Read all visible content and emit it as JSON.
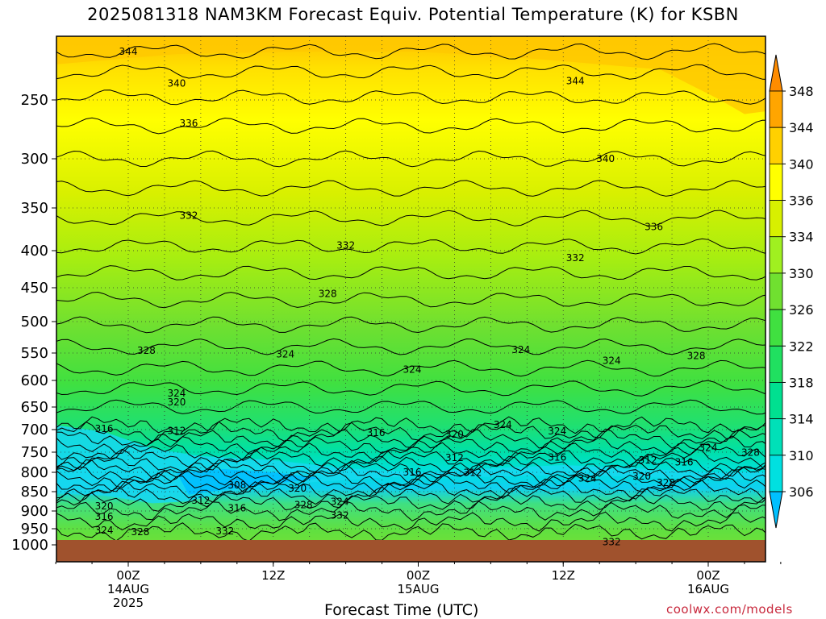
{
  "chart_data": {
    "type": "heatmap",
    "title": "2025081318 NAM3KM Forecast Equiv. Potential Temperature (K) for KSBN",
    "xlabel": "Forecast Time (UTC)",
    "ylabel": "",
    "y_axis": {
      "scale": "pressure",
      "ticks": [
        250,
        300,
        350,
        400,
        450,
        500,
        550,
        600,
        650,
        700,
        750,
        800,
        850,
        900,
        950,
        1000
      ],
      "range": [
        200,
        1010
      ]
    },
    "x_axis": {
      "ticks": [
        {
          "hour": 6,
          "lines": [
            "00Z",
            "14AUG",
            "2025"
          ]
        },
        {
          "hour": 18,
          "lines": [
            "12Z"
          ]
        },
        {
          "hour": 30,
          "lines": [
            "00Z",
            "15AUG"
          ]
        },
        {
          "hour": 42,
          "lines": [
            "12Z"
          ]
        },
        {
          "hour": 54,
          "lines": [
            "00Z",
            "16AUG"
          ]
        }
      ],
      "range": [
        0,
        60
      ]
    },
    "colorbar": {
      "levels": [
        306,
        310,
        314,
        318,
        322,
        326,
        330,
        334,
        336,
        340,
        344,
        348
      ],
      "colors": [
        "#00c0ff",
        "#00e0e0",
        "#00e0b8",
        "#00e090",
        "#20e060",
        "#40e040",
        "#70e030",
        "#a0f020",
        "#d8f000",
        "#ffff00",
        "#ffd000",
        "#ffa500",
        "#ff8c00"
      ]
    },
    "contour_labels": [
      {
        "v": "344",
        "t": 6.0,
        "p": 212
      },
      {
        "v": "340",
        "t": 10.0,
        "p": 237
      },
      {
        "v": "336",
        "t": 11.0,
        "p": 270
      },
      {
        "v": "344",
        "t": 43.0,
        "p": 235
      },
      {
        "v": "340",
        "t": 45.5,
        "p": 300
      },
      {
        "v": "336",
        "t": 49.5,
        "p": 372
      },
      {
        "v": "332",
        "t": 11.0,
        "p": 359
      },
      {
        "v": "332",
        "t": 24.0,
        "p": 394
      },
      {
        "v": "332",
        "t": 43.0,
        "p": 410
      },
      {
        "v": "328",
        "t": 22.5,
        "p": 459
      },
      {
        "v": "328",
        "t": 7.5,
        "p": 546
      },
      {
        "v": "324",
        "t": 19.0,
        "p": 552
      },
      {
        "v": "324",
        "t": 29.5,
        "p": 580
      },
      {
        "v": "324",
        "t": 38.5,
        "p": 545
      },
      {
        "v": "324",
        "t": 46.0,
        "p": 564
      },
      {
        "v": "328",
        "t": 53.0,
        "p": 555
      },
      {
        "v": "324",
        "t": 10.0,
        "p": 624
      },
      {
        "v": "320",
        "t": 10.0,
        "p": 641
      },
      {
        "v": "316",
        "t": 4.0,
        "p": 698
      },
      {
        "v": "312",
        "t": 10.0,
        "p": 703
      },
      {
        "v": "316",
        "t": 26.5,
        "p": 707
      },
      {
        "v": "320",
        "t": 33.0,
        "p": 711
      },
      {
        "v": "324",
        "t": 37.0,
        "p": 689
      },
      {
        "v": "324",
        "t": 41.5,
        "p": 704
      },
      {
        "v": "312",
        "t": 33.0,
        "p": 764
      },
      {
        "v": "316",
        "t": 41.5,
        "p": 763
      },
      {
        "v": "312",
        "t": 49.0,
        "p": 770
      },
      {
        "v": "316",
        "t": 52.0,
        "p": 775
      },
      {
        "v": "324",
        "t": 54.0,
        "p": 740
      },
      {
        "v": "328",
        "t": 57.5,
        "p": 751
      },
      {
        "v": "316",
        "t": 29.5,
        "p": 800
      },
      {
        "v": "312",
        "t": 34.5,
        "p": 801
      },
      {
        "v": "320",
        "t": 48.5,
        "p": 810
      },
      {
        "v": "328",
        "t": 50.5,
        "p": 827
      },
      {
        "v": "324",
        "t": 44.0,
        "p": 816
      },
      {
        "v": "308",
        "t": 15.0,
        "p": 833
      },
      {
        "v": "320",
        "t": 20.0,
        "p": 842
      },
      {
        "v": "312",
        "t": 12.0,
        "p": 873
      },
      {
        "v": "316",
        "t": 15.0,
        "p": 893
      },
      {
        "v": "328",
        "t": 20.5,
        "p": 884
      },
      {
        "v": "324",
        "t": 23.5,
        "p": 876
      },
      {
        "v": "332",
        "t": 23.5,
        "p": 912
      },
      {
        "v": "320",
        "t": 4.0,
        "p": 888
      },
      {
        "v": "316",
        "t": 4.0,
        "p": 916
      },
      {
        "v": "324",
        "t": 4.0,
        "p": 955
      },
      {
        "v": "328",
        "t": 7.0,
        "p": 960
      },
      {
        "v": "332",
        "t": 14.0,
        "p": 958
      },
      {
        "v": "332",
        "t": 46.0,
        "p": 991
      }
    ],
    "ground_below_hpa": 985
  },
  "credit": "coolwx.com/models"
}
